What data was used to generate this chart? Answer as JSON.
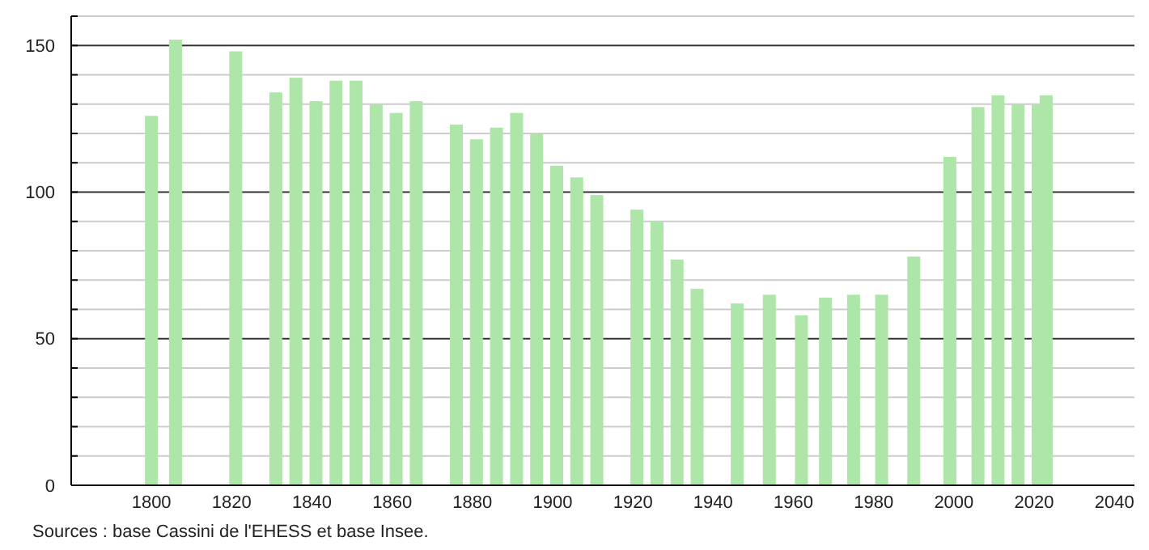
{
  "chart_data": {
    "type": "bar",
    "x": [
      1800,
      1806,
      1821,
      1831,
      1836,
      1841,
      1846,
      1851,
      1856,
      1861,
      1866,
      1876,
      1881,
      1886,
      1891,
      1896,
      1901,
      1906,
      1911,
      1921,
      1926,
      1931,
      1936,
      1946,
      1954,
      1962,
      1968,
      1975,
      1982,
      1990,
      1999,
      2006,
      2011,
      2016,
      2021,
      2023
    ],
    "values": [
      126,
      152,
      148,
      134,
      139,
      131,
      138,
      138,
      130,
      127,
      131,
      123,
      118,
      122,
      127,
      120,
      109,
      105,
      99,
      94,
      90,
      77,
      67,
      62,
      65,
      58,
      64,
      65,
      65,
      78,
      112,
      129,
      133,
      130,
      130,
      133
    ],
    "color": "#aee5a8",
    "xlim": [
      1780,
      2045
    ],
    "xticks": [
      1800,
      1820,
      1840,
      1860,
      1880,
      1900,
      1920,
      1940,
      1960,
      1980,
      2000,
      2020,
      2040
    ],
    "ylim": [
      0,
      160
    ],
    "yticks": [
      0,
      {
        "value": 10,
        "label": null
      },
      {
        "value": 20,
        "label": null
      },
      {
        "value": 30,
        "label": null
      },
      {
        "value": 40,
        "label": null
      },
      50,
      {
        "value": 60,
        "label": null
      },
      {
        "value": 70,
        "label": null
      },
      {
        "value": 80,
        "label": null
      },
      {
        "value": 90,
        "label": null
      },
      100,
      {
        "value": 110,
        "label": null
      },
      {
        "value": 120,
        "label": null
      },
      {
        "value": 130,
        "label": null
      },
      {
        "value": 140,
        "label": null
      },
      150,
      {
        "value": 160,
        "label": null
      }
    ],
    "grid": "y",
    "annotations": [
      "Sources : base Cassini de l'EHESS et base Insee."
    ]
  }
}
